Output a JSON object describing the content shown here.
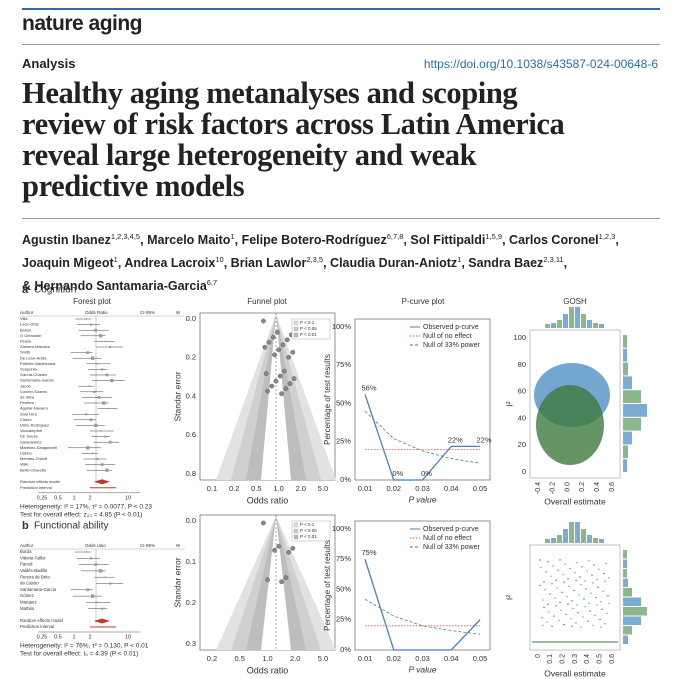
{
  "header": {
    "journal": "nature aging",
    "section": "Analysis",
    "doi": "https://doi.org/10.1038/s43587-024-00648-6"
  },
  "title_lines": [
    "Healthy aging metanalyses and scoping",
    "review of risk factors across Latin America",
    "reveal large heterogeneity and weak",
    "predictive models"
  ],
  "authors_lines": [
    [
      {
        "name": "Agustin Ibanez",
        "sup": "1,2,3,4,5",
        "sep": ","
      },
      {
        "name": "Marcelo Maito",
        "sup": "1",
        "sep": ","
      },
      {
        "name": "Felipe Botero-Rodríguez",
        "sup": "6,7,8",
        "sep": ","
      },
      {
        "name": "Sol Fittipaldi",
        "sup": "1,5,9",
        "sep": ","
      },
      {
        "name": "Carlos Coronel",
        "sup": "1,2,3",
        "sep": ","
      }
    ],
    [
      {
        "name": "Joaquin Migeot",
        "sup": "1",
        "sep": ","
      },
      {
        "name": "Andrea Lacroix",
        "sup": "10",
        "sep": ","
      },
      {
        "name": "Brian Lawlor",
        "sup": "2,3,5",
        "sep": ","
      },
      {
        "name": "Claudia Duran-Aniotz",
        "sup": "1",
        "sep": ","
      },
      {
        "name": "Sandra Baez",
        "sup": "2,3,11",
        "sep": ","
      }
    ],
    [
      {
        "name": "& Hernando Santamaria-Garcia",
        "sup": "6,7"
      }
    ]
  ],
  "figure": {
    "panels": [
      {
        "label": "a",
        "title": "Cognition",
        "forest": {
          "title": "Forest plot",
          "col_headers": [
            "Author",
            "Odds Ratio",
            "CI-95%",
            "W"
          ],
          "studies": [
            "Villa",
            "León-Ortiz",
            "Borda",
            "O Genowan",
            "Pease",
            "Zamora-Macorra",
            "Smith",
            "De León-Arcila",
            "Poblete-Valderrama",
            "Scapuhia",
            "García-Chanes",
            "Santamaria-Garcia",
            "Jacob",
            "Cocher-Soares",
            "da Silva",
            "Peeters",
            "Aguilar-Navarro",
            "Sola Urra",
            "Cisero",
            "Uribe Rodríguez",
            "Vancampfort",
            "De Souza",
            "Sanedewicz",
            "Martinez-Sanguinetti",
            "Lillebo",
            "Mendes-Chiloff",
            "Valle",
            "Bello-Chavolla"
          ],
          "summary": [
            "Random effects model",
            "Prediction interval"
          ],
          "xticks": [
            "0.25",
            "0.5",
            "1",
            "2",
            "10"
          ],
          "heterogeneity": "Heterogeneity: I² = 17%, τ² = 0.0077, P < 0.23",
          "test": "Test for overall effect: z₂₃ = 4.85 (P < 0.01)"
        },
        "funnel": {
          "title": "Funnel plot",
          "xlabel": "Odds ratio",
          "ylabel": "Standar error",
          "xticks": [
            "0.1",
            "0.2",
            "0.5",
            "1.0",
            "2.0",
            "5.0"
          ],
          "yticks": [
            "0.0",
            "0.2",
            "0.4",
            "0.6",
            "0.8"
          ],
          "legend": [
            "P < 0.1",
            "P < 0.05",
            "P < 0.01"
          ]
        },
        "pcurve": {
          "title": "P-curve plot",
          "xlabel": "P value",
          "ylabel": "Percentage of test results",
          "xticks": [
            "0.01",
            "0.02",
            "0.03",
            "0.04",
            "0.05"
          ],
          "yticks": [
            "0%",
            "25%",
            "50%",
            "75%",
            "100%"
          ],
          "ylim": [
            0,
            100
          ],
          "legend": [
            "Observed p-curve",
            "Null of no effect",
            "Null of 33% power"
          ],
          "observed": [
            56,
            0,
            0,
            22,
            22
          ],
          "observed_labels": [
            "56%",
            "0%",
            "0%",
            "22%",
            "22%"
          ],
          "null_no_effect": [
            20,
            20,
            20,
            20,
            20
          ],
          "null_33_power": [
            45,
            27,
            19,
            14,
            11
          ]
        },
        "gosh": {
          "title": "GOSH",
          "xlabel": "Overall estimate",
          "ylabel": "I²",
          "xticks": [
            "-0.4",
            "-0.2",
            "0.0",
            "0.2",
            "0.4",
            "0.6"
          ],
          "yticks": [
            "0",
            "20",
            "40",
            "60",
            "80",
            "100"
          ]
        }
      },
      {
        "label": "b",
        "title": "Functional ability",
        "forest": {
          "title": "Forest plot",
          "col_headers": [
            "Author",
            "Odds ratio",
            "CI-95%",
            "W"
          ],
          "studies": [
            "Borda",
            "Vittoria Fallisi",
            "Parodi",
            "Valdés-Badilla",
            "Pereira de Brito",
            "da Castro",
            "Santamaria-Garcia",
            "Gómez",
            "Marquez",
            "Mathila"
          ],
          "summary": [
            "Random effects model",
            "Prediction interval"
          ],
          "xticks": [
            "0.25",
            "0.5",
            "1",
            "2",
            "10"
          ],
          "heterogeneity": "Heterogeneity: I² = 76%, τ² = 0.130, P < 0.01",
          "test": "Test for overall effect: t₉ = 4.39 (P < 0.01)"
        },
        "funnel": {
          "title": "Funnel plot",
          "xlabel": "Odds ratio",
          "ylabel": "Standar error",
          "xticks": [
            "0.2",
            "0.5",
            "1.0",
            "2.0",
            "5.0"
          ],
          "yticks": [
            "0.0",
            "0.1",
            "0.2",
            "0.3"
          ],
          "legend": [
            "P < 0.1",
            "P < 0.05",
            "P < 0.01"
          ]
        },
        "pcurve": {
          "title": "P-curve plot",
          "xlabel": "P value",
          "ylabel": "Percentage of test results",
          "xticks": [
            "0.01",
            "0.02",
            "0.03",
            "0.04",
            "0.05"
          ],
          "yticks": [
            "0%",
            "25%",
            "50%",
            "75%",
            "100%"
          ],
          "ylim": [
            0,
            100
          ],
          "legend": [
            "Observed p-curve",
            "Null of no effect",
            "Null of 33% power"
          ],
          "observed": [
            75,
            0,
            0,
            0,
            25
          ],
          "observed_labels": [
            "75%",
            null,
            null,
            null,
            null
          ],
          "null_no_effect": [
            20,
            20,
            20,
            20,
            20
          ],
          "null_33_power": [
            42,
            28,
            20,
            16,
            13
          ]
        },
        "gosh": {
          "title": null,
          "xlabel": "Overall estimate",
          "ylabel": "I²",
          "xticks": [
            "0",
            "0.1",
            "0.2",
            "0.3",
            "0.4",
            "0.5",
            "0.6"
          ],
          "yticks": []
        }
      }
    ]
  }
}
